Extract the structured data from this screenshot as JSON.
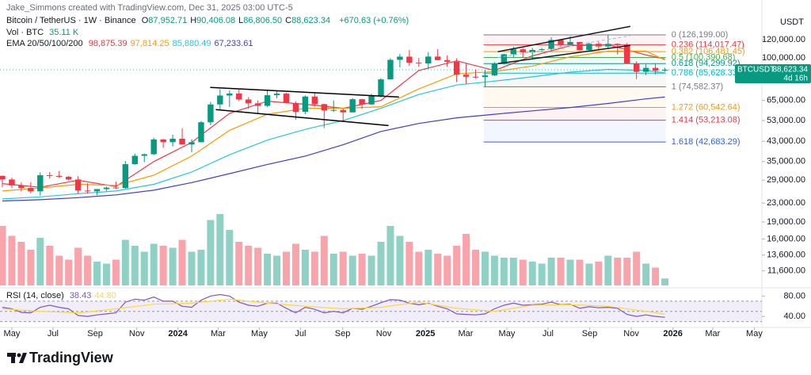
{
  "brand": "TradingView",
  "chart_data": {
    "type": "candlestick",
    "author": "Jake_Simmons created with TradingView.com, Dec 31, 2025 03:00 UTC-5",
    "title": "Bitcoin / TetherUS · 1W · Binance",
    "ohlc_prefixes": [
      "O",
      "H",
      "L",
      "C"
    ],
    "last_labels": [
      "87,952.71",
      "90,406.08",
      "86,806.50",
      "88,623.34"
    ],
    "change": "+670.63 (+0.76%)",
    "up_color": "#089981",
    "down_color": "#f23645",
    "axis_title": "USDT",
    "log_scale": true,
    "xlim": [
      -0.5,
      160.5
    ],
    "ylim": [
      10000,
      140000
    ],
    "xticks": [
      {
        "value": 2,
        "label": "May"
      },
      {
        "value": 10.7,
        "label": "Jul"
      },
      {
        "value": 19.6,
        "label": "Sep"
      },
      {
        "value": 28.4,
        "label": "Nov"
      },
      {
        "value": 37.1,
        "label": "2024"
      },
      {
        "value": 45.6,
        "label": "Mar"
      },
      {
        "value": 54.3,
        "label": "May"
      },
      {
        "value": 63,
        "label": "Jul"
      },
      {
        "value": 71.9,
        "label": "Sep"
      },
      {
        "value": 80.6,
        "label": "Nov"
      },
      {
        "value": 89.4,
        "label": "2025"
      },
      {
        "value": 97.9,
        "label": "Mar"
      },
      {
        "value": 106.6,
        "label": "May"
      },
      {
        "value": 115.3,
        "label": "Jul"
      },
      {
        "value": 124.1,
        "label": "Sep"
      },
      {
        "value": 132.9,
        "label": "Nov"
      },
      {
        "value": 141.7,
        "label": "2026"
      },
      {
        "value": 150.1,
        "label": "Mar"
      },
      {
        "value": 158.9,
        "label": "May"
      }
    ],
    "yticks": [
      {
        "value": 120000,
        "label": "120,000.00"
      },
      {
        "value": 100000,
        "label": "100,000.00"
      },
      {
        "value": 65000,
        "label": "65,000.00"
      },
      {
        "value": 53000,
        "label": "53,000.00"
      },
      {
        "value": 43000,
        "label": "43,000.00"
      },
      {
        "value": 35000,
        "label": "35,000.00"
      },
      {
        "value": 29000,
        "label": "29,000.00"
      },
      {
        "value": 23000,
        "label": "23,000.00"
      },
      {
        "value": 19000,
        "label": "19,000.00"
      },
      {
        "value": 16000,
        "label": "16,000.00"
      },
      {
        "value": 13600,
        "label": "13,600.00"
      },
      {
        "value": 11600,
        "label": "11,600.00"
      }
    ],
    "x": [
      0,
      2,
      4,
      6,
      8,
      10,
      12,
      14,
      16,
      18,
      20,
      22,
      24,
      26,
      28,
      30,
      32,
      34,
      36,
      38,
      40,
      42,
      44,
      46,
      48,
      50,
      52,
      54,
      56,
      58,
      60,
      62,
      64,
      66,
      68,
      70,
      72,
      74,
      76,
      78,
      80,
      82,
      84,
      86,
      88,
      90,
      92,
      94,
      96,
      98,
      100,
      102,
      104,
      106,
      108,
      110,
      112,
      114,
      116,
      118,
      120,
      122,
      124,
      126,
      128,
      130,
      132,
      134,
      136,
      138,
      140
    ],
    "open": [
      30300,
      29200,
      27500,
      26800,
      25900,
      30500,
      30300,
      30000,
      29200,
      26100,
      25900,
      26500,
      26900,
      26800,
      34100,
      37100,
      37700,
      43800,
      42600,
      44100,
      41600,
      42600,
      52100,
      62400,
      68300,
      69700,
      65600,
      63100,
      61500,
      68500,
      69600,
      63200,
      57900,
      67600,
      62600,
      58700,
      59000,
      57600,
      65800,
      62400,
      68000,
      80400,
      98000,
      101200,
      95200,
      94500,
      101300,
      97700,
      96100,
      84300,
      82600,
      82300,
      83700,
      94300,
      103700,
      109000,
      105600,
      108300,
      109200,
      119800,
      114200,
      117400,
      108200,
      115300,
      112200,
      115200,
      114500,
      94300,
      86800,
      90300,
      87952.71
    ],
    "high": [
      30400,
      29800,
      28400,
      28400,
      31400,
      31500,
      31800,
      30300,
      30200,
      28100,
      26500,
      27200,
      28600,
      35200,
      37900,
      38000,
      44500,
      44000,
      45900,
      49000,
      43900,
      52800,
      64000,
      72800,
      71800,
      72700,
      67200,
      65000,
      71900,
      71900,
      70200,
      64400,
      68400,
      70000,
      62800,
      65000,
      59800,
      66500,
      66000,
      69500,
      81500,
      99600,
      104000,
      108300,
      99900,
      106000,
      109300,
      102500,
      99500,
      95000,
      88800,
      88500,
      95700,
      104100,
      111900,
      110600,
      110600,
      110500,
      123200,
      120200,
      124500,
      117600,
      116700,
      117900,
      126200,
      115900,
      116400,
      96600,
      93900,
      94600,
      90406.08
    ],
    "low": [
      27000,
      26800,
      25900,
      25400,
      24800,
      29500,
      29700,
      28900,
      25200,
      25300,
      24900,
      26000,
      26500,
      26600,
      33900,
      34800,
      37400,
      40200,
      40800,
      41500,
      38500,
      42500,
      50600,
      59000,
      60800,
      64500,
      59600,
      56500,
      60700,
      66300,
      63000,
      53500,
      56500,
      61000,
      49100,
      57800,
      52500,
      57500,
      59800,
      62000,
      66800,
      80200,
      90800,
      92300,
      91300,
      89300,
      97500,
      91200,
      78200,
      76600,
      81200,
      74400,
      83200,
      93400,
      100700,
      100400,
      98200,
      106300,
      107500,
      112000,
      112700,
      107300,
      107300,
      108700,
      109600,
      103500,
      94000,
      80600,
      83800,
      84500,
      86806.5
    ],
    "close": [
      29200,
      27500,
      26800,
      25900,
      30500,
      30300,
      30000,
      29200,
      26100,
      25900,
      26500,
      26900,
      26800,
      34100,
      37100,
      37700,
      43800,
      42600,
      44100,
      41600,
      42600,
      52100,
      62400,
      68300,
      69700,
      65600,
      63100,
      61500,
      68500,
      69600,
      63200,
      57900,
      67600,
      62600,
      58700,
      59000,
      57600,
      65800,
      62400,
      68000,
      80400,
      98000,
      101200,
      95200,
      94500,
      101300,
      97700,
      96100,
      84300,
      82600,
      82300,
      83700,
      94300,
      103700,
      109000,
      105600,
      108300,
      109200,
      119800,
      114200,
      117400,
      108200,
      115300,
      112200,
      115200,
      114500,
      94300,
      86800,
      90300,
      87950,
      88623.34
    ],
    "last_price": {
      "symbol": "BTCUSDT",
      "value": 88623.34,
      "label": "88,623.34",
      "countdown": "4d 16h"
    },
    "volume": {
      "title": "Vol · BTC",
      "last_label": "35.11 K",
      "ylim": [
        0,
        400000
      ],
      "values": [
        300000,
        250000,
        220000,
        180000,
        240000,
        200000,
        150000,
        130000,
        190000,
        150000,
        120000,
        110000,
        130000,
        230000,
        200000,
        170000,
        210000,
        200000,
        190000,
        230000,
        170000,
        180000,
        330000,
        360000,
        280000,
        220000,
        200000,
        190000,
        160000,
        150000,
        170000,
        210000,
        180000,
        170000,
        250000,
        160000,
        170000,
        150000,
        160000,
        150000,
        220000,
        300000,
        250000,
        220000,
        170000,
        180000,
        160000,
        150000,
        200000,
        260000,
        180000,
        170000,
        150000,
        140000,
        140000,
        130000,
        120000,
        110000,
        140000,
        140000,
        130000,
        130000,
        110000,
        120000,
        150000,
        140000,
        140000,
        170000,
        110000,
        90000,
        35110
      ]
    },
    "ema": {
      "title": "EMA 20/50/100/200",
      "x": [
        0,
        8,
        16,
        24,
        32,
        40,
        48,
        56,
        64,
        72,
        80,
        88,
        96,
        104,
        112,
        120,
        128,
        136,
        140
      ],
      "series": [
        {
          "color": "#f23645",
          "last_label": "98,875.39",
          "values": [
            28000,
            27000,
            29000,
            27200,
            35000,
            42500,
            57000,
            64500,
            62500,
            60000,
            65000,
            88000,
            97000,
            88000,
            102000,
            113000,
            114000,
            103000,
            98875.39
          ]
        },
        {
          "color": "#ff9800",
          "last_label": "97,814.25",
          "values": [
            26000,
            26800,
            27800,
            27500,
            30500,
            37000,
            48000,
            56500,
            60000,
            60000,
            61000,
            73000,
            85000,
            87000,
            92000,
            101000,
            107000,
            107000,
            97814.25
          ]
        },
        {
          "color": "#26c6da",
          "last_label": "85,880.49",
          "values": [
            24000,
            24500,
            25300,
            26000,
            27800,
            31500,
            37500,
            43500,
            48500,
            53000,
            60000,
            69000,
            76000,
            79000,
            82500,
            86500,
            89000,
            88000,
            85880.49
          ]
        },
        {
          "color": "#3f3fcf",
          "last_label": "67,233.61",
          "values": [
            23500,
            23800,
            24300,
            25000,
            26200,
            28300,
            31000,
            34000,
            37000,
            41500,
            47500,
            51500,
            54500,
            56500,
            58500,
            60500,
            63000,
            66000,
            67233.61
          ]
        }
      ]
    },
    "fib": {
      "x": [
        101.7,
        140.2
      ],
      "levels": [
        {
          "label": "0 (126,199.00)",
          "value": 126199,
          "color": "#787b86"
        },
        {
          "label": "0.236 (114,017.47)",
          "value": 114017.47,
          "color": "#f23645"
        },
        {
          "label": "0.382 (106,481.45)",
          "value": 106481.45,
          "color": "#ff9800"
        },
        {
          "label": "0.5 (100,390.68)",
          "value": 100390.68,
          "color": "#4caf50"
        },
        {
          "label": "0.618 (94,299.92)",
          "value": 94299.92,
          "color": "#089981"
        },
        {
          "label": "0.786 (85,628.33)",
          "value": 85628.33,
          "color": "#00bcd4"
        },
        {
          "label": "1 (74,582.37)",
          "value": 74582.37,
          "color": "#787b86"
        },
        {
          "label": "1.272 (60,542.64)",
          "value": 60542.64,
          "color": "#ff9800"
        },
        {
          "label": "1.414 (53,213.08)",
          "value": 53213.08,
          "color": "#f23645"
        },
        {
          "label": "1.618 (42,683.29)",
          "value": 42683.29,
          "color": "#2962ff"
        }
      ]
    },
    "drawings": [
      {
        "x": [
          43.9,
          83.8
        ],
        "y": [
          74150,
          67300
        ],
        "color": "#000000"
      },
      {
        "x": [
          45.1,
          81.6
        ],
        "y": [
          59200,
          50400
        ],
        "color": "#000000"
      },
      {
        "x": [
          104.7,
          132.7
        ],
        "y": [
          106400,
          137500
        ],
        "color": "#131722"
      },
      {
        "x": [
          104.7,
          132.7
        ],
        "y": [
          94300,
          113400
        ],
        "color": "#131722"
      },
      {
        "x": [
          104.7,
          132.7
        ],
        "y": [
          100200,
          125000
        ],
        "color": "#90bff9",
        "dashed": true
      }
    ],
    "rsi": {
      "title": "RSI (14, close)",
      "ylim": [
        20,
        90
      ],
      "yticks": [
        {
          "value": 80,
          "label": "80.00"
        },
        {
          "value": 40,
          "label": "40.00"
        }
      ],
      "levels": [
        70,
        50,
        30
      ],
      "band_color": "#7e57c2",
      "series": [
        {
          "color": "#7e57c2",
          "last_label": "38.43",
          "values": [
            58,
            55,
            48,
            47,
            58,
            62,
            58,
            55,
            42,
            40,
            43,
            45,
            47,
            68,
            74,
            72,
            78,
            70,
            70,
            60,
            58,
            72,
            80,
            83,
            80,
            68,
            62,
            60,
            66,
            66,
            56,
            47,
            58,
            54,
            47,
            50,
            47,
            56,
            54,
            60,
            67,
            73,
            72,
            66,
            63,
            66,
            60,
            55,
            45,
            44,
            43,
            45,
            55,
            62,
            66,
            62,
            63,
            64,
            68,
            63,
            64,
            56,
            59,
            57,
            58,
            56,
            44,
            40,
            43,
            40,
            38.43
          ]
        },
        {
          "color": "#fdd835",
          "last_label": "44.80",
          "x": [
            0,
            8,
            16,
            24,
            32,
            40,
            48,
            56,
            64,
            72,
            80,
            88,
            96,
            104,
            112,
            120,
            128,
            136,
            140
          ],
          "values": [
            55,
            50,
            47,
            55,
            64,
            66,
            74,
            66,
            60,
            55,
            58,
            68,
            56,
            50,
            62,
            63,
            60,
            50,
            44.8
          ]
        }
      ]
    }
  }
}
